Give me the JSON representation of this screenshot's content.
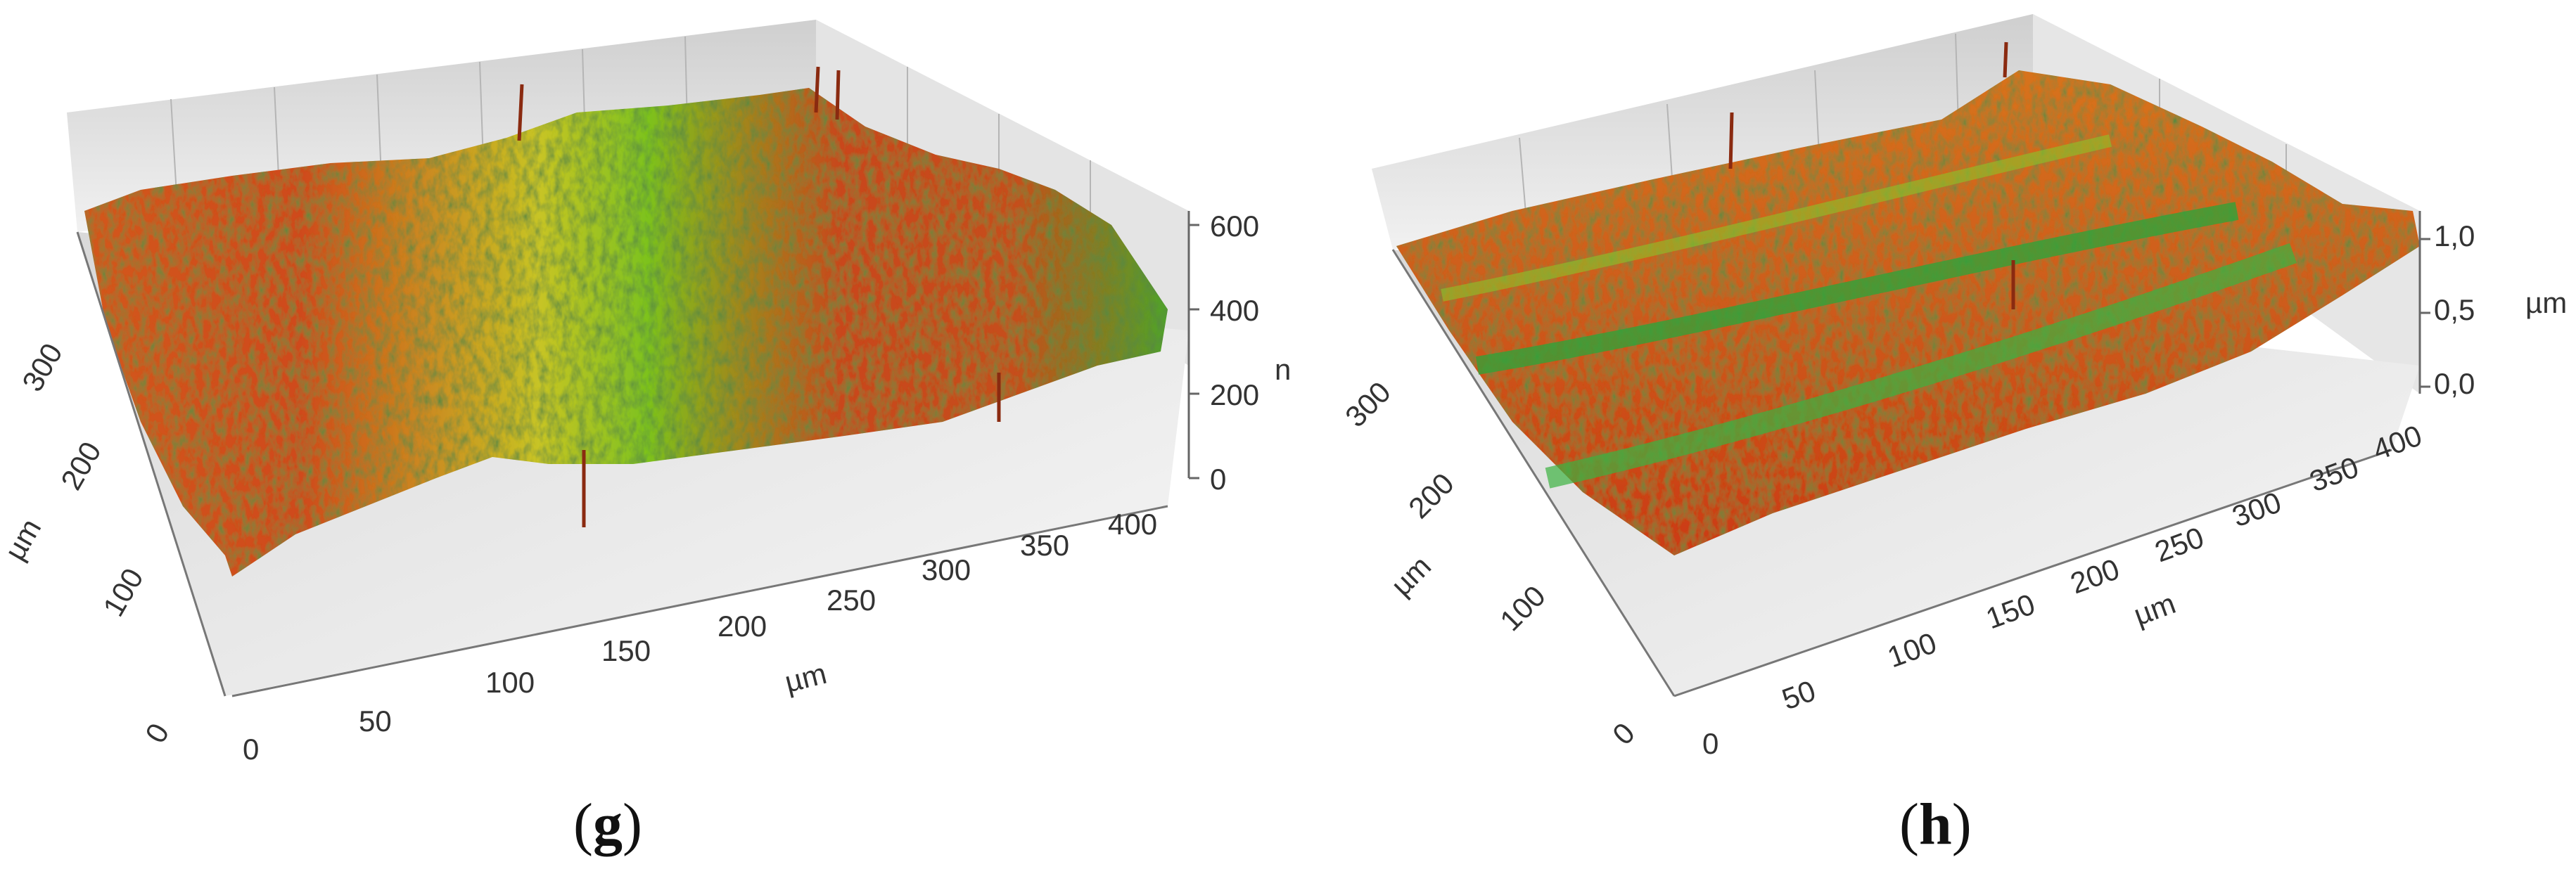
{
  "chart_data": [
    {
      "type": "surface3d",
      "panel_label": "g",
      "x_axis": {
        "label": "µm",
        "ticks": [
          "0",
          "50",
          "100",
          "150",
          "200",
          "250",
          "300",
          "350",
          "400"
        ],
        "range": [
          0,
          420
        ]
      },
      "y_axis": {
        "label": "µm",
        "ticks": [
          "0",
          "100",
          "200",
          "300"
        ],
        "range": [
          0,
          330
        ]
      },
      "z_axis": {
        "label": "n",
        "ticks": [
          "0",
          "200",
          "400",
          "600"
        ],
        "range": [
          0,
          600
        ]
      },
      "colormap": [
        "#1b8f2e",
        "#7fc41a",
        "#d6d01e",
        "#e07a1c",
        "#c8321a"
      ],
      "surface_notes": "two elevated red-orange regions separated by a lower yellow-green band"
    },
    {
      "type": "surface3d",
      "panel_label": "h",
      "x_axis": {
        "label": "µm",
        "ticks": [
          "0",
          "50",
          "100",
          "150",
          "200",
          "250",
          "300",
          "350",
          "400"
        ],
        "range": [
          0,
          420
        ]
      },
      "y_axis": {
        "label": "µm",
        "ticks": [
          "0",
          "100",
          "200",
          "300"
        ],
        "range": [
          0,
          330
        ]
      },
      "z_axis": {
        "label": "µm",
        "ticks": [
          "0,0",
          "0,5",
          "1,0"
        ],
        "range": [
          0,
          1.0
        ]
      },
      "colormap": [
        "#1b8f2e",
        "#7fc41a",
        "#d6d01e",
        "#e07a1c",
        "#c8321a"
      ],
      "surface_notes": "parallel ridges with green grooves between red-orange crests"
    }
  ]
}
